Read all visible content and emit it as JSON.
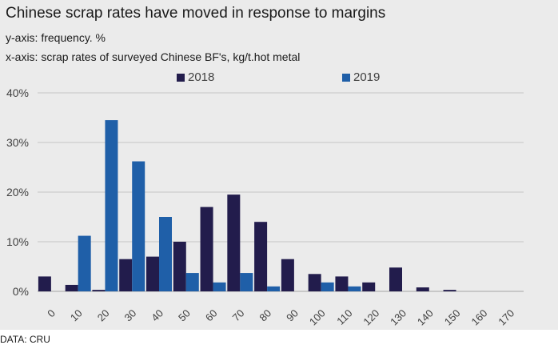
{
  "title": "Chinese scrap rates have moved in response to margins",
  "subtitle_y": "y-axis: frequency. %",
  "subtitle_x": "x-axis: scrap rates of surveyed Chinese BF's, kg/t.hot metal",
  "source": "DATA: CRU",
  "colors": {
    "series_2018": "#221c4c",
    "series_2019": "#1f5fa8",
    "panel": "#ebebeb",
    "grid": "#c4c4c4"
  },
  "chart_data": {
    "type": "bar",
    "categories": [
      "0",
      "10",
      "20",
      "30",
      "40",
      "50",
      "60",
      "70",
      "80",
      "90",
      "100",
      "110",
      "120",
      "130",
      "140",
      "150",
      "160",
      "170"
    ],
    "series": [
      {
        "name": "2018",
        "values": [
          3,
          1.3,
          0.3,
          6.5,
          7,
          10,
          17,
          19.5,
          14,
          6.5,
          3.5,
          3,
          1.8,
          4.8,
          0.8,
          0.3,
          0,
          0
        ]
      },
      {
        "name": "2019",
        "values": [
          0,
          11.2,
          34.5,
          26.2,
          15,
          3.7,
          1.8,
          3.7,
          1,
          0,
          1.8,
          1,
          0,
          0,
          0,
          0,
          0,
          0
        ]
      }
    ],
    "yticks": [
      "0%",
      "10%",
      "20%",
      "30%",
      "40%"
    ],
    "ylim": [
      0,
      40
    ],
    "grid": true,
    "legend": "top"
  }
}
